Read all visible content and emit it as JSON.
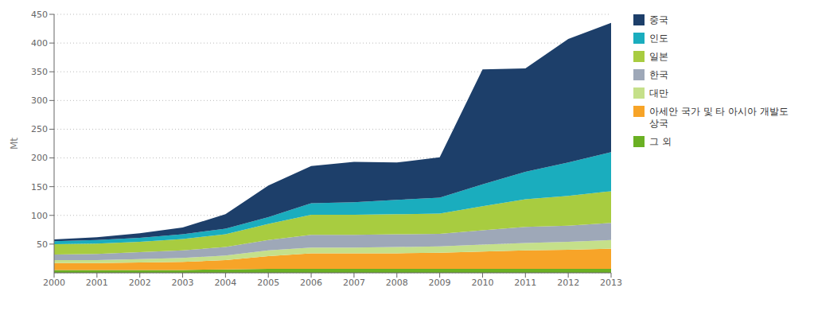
{
  "chart_data": {
    "type": "area",
    "stacked": true,
    "x": [
      2000,
      2001,
      2002,
      2003,
      2004,
      2005,
      2006,
      2007,
      2008,
      2009,
      2010,
      2011,
      2012,
      2013
    ],
    "xlim": [
      2000,
      2013
    ],
    "xticks": [
      2000,
      2001,
      2002,
      2003,
      2004,
      2005,
      2006,
      2007,
      2008,
      2009,
      2010,
      2011,
      2012,
      2013
    ],
    "ylabel": "Mt",
    "ylim": [
      0,
      450
    ],
    "yticks": [
      50,
      100,
      150,
      200,
      250,
      300,
      350,
      400,
      450
    ],
    "grid": true,
    "legend": "right",
    "series": [
      {
        "name": "그 외",
        "color": "#6ab023",
        "values": [
          5,
          5,
          5,
          5,
          6,
          7,
          7,
          7,
          7,
          7,
          7,
          7,
          7,
          7
        ]
      },
      {
        "name": "아세안 국가 및 타 아시아 개발도상국",
        "color": "#f7a428",
        "values": [
          12,
          12,
          13,
          14,
          16,
          22,
          27,
          27,
          27,
          28,
          30,
          32,
          33,
          35
        ]
      },
      {
        "name": "대만",
        "color": "#c5e08a",
        "values": [
          5,
          5,
          6,
          7,
          8,
          10,
          10,
          10,
          11,
          11,
          12,
          13,
          14,
          15
        ]
      },
      {
        "name": "한국",
        "color": "#9ea8b8",
        "values": [
          10,
          11,
          12,
          13,
          15,
          18,
          22,
          22,
          22,
          22,
          25,
          28,
          28,
          30
        ]
      },
      {
        "name": "일본",
        "color": "#a8cc40",
        "values": [
          18,
          18,
          18,
          20,
          22,
          28,
          35,
          35,
          35,
          35,
          42,
          48,
          52,
          55
        ]
      },
      {
        "name": "인도",
        "color": "#1aadbe",
        "values": [
          5,
          6,
          7,
          8,
          10,
          12,
          20,
          22,
          25,
          28,
          38,
          48,
          58,
          68
        ]
      },
      {
        "name": "중국",
        "color": "#1d3f6a",
        "values": [
          3,
          5,
          8,
          12,
          25,
          55,
          65,
          70,
          65,
          70,
          200,
          180,
          215,
          225
        ]
      }
    ]
  }
}
